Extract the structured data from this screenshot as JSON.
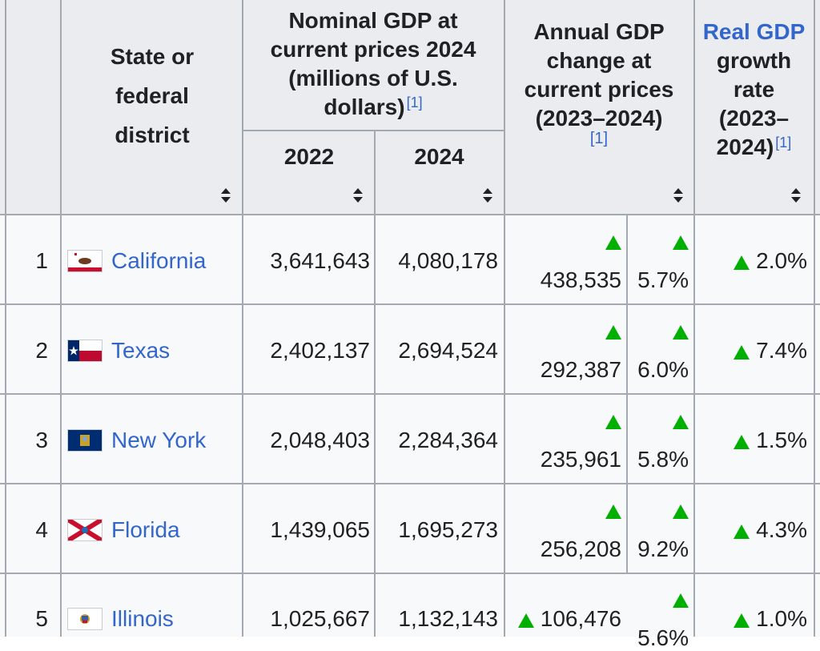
{
  "header": {
    "state_col": [
      "State or",
      "federal",
      "district"
    ],
    "nominal_group": [
      "Nominal GDP at",
      "current prices 2024",
      "(millions of U.S.",
      "dollars)"
    ],
    "year_2022": "2022",
    "year_2024": "2024",
    "annual_change": [
      "Annual GDP",
      "change at",
      "current prices",
      "(2023–2024)"
    ],
    "real_growth_link": "Real GDP",
    "real_growth": [
      "growth",
      "rate",
      "(2023–",
      "2024)"
    ],
    "ref_label": "[1]"
  },
  "colors": {
    "link": "#3366cc",
    "up_arrow": "#00af00",
    "header_bg": "#eaecf0",
    "row_bg": "#f8f9fa",
    "border": "#a2a9b1"
  },
  "icons": {
    "sort": "sort-arrows-icon",
    "increase": "triangle-up-icon"
  },
  "rows": [
    {
      "rank": "1",
      "state": "California",
      "flag": "california-flag-icon",
      "gdp_2022": "3,641,643",
      "gdp_2024": "4,080,178",
      "change": "438,535",
      "change_pct": "5.7%",
      "real_growth": "2.0%"
    },
    {
      "rank": "2",
      "state": "Texas",
      "flag": "texas-flag-icon",
      "gdp_2022": "2,402,137",
      "gdp_2024": "2,694,524",
      "change": "292,387",
      "change_pct": "6.0%",
      "real_growth": "7.4%"
    },
    {
      "rank": "3",
      "state": "New York",
      "flag": "new-york-flag-icon",
      "gdp_2022": "2,048,403",
      "gdp_2024": "2,284,364",
      "change": "235,961",
      "change_pct": "5.8%",
      "real_growth": "1.5%"
    },
    {
      "rank": "4",
      "state": "Florida",
      "flag": "florida-flag-icon",
      "gdp_2022": "1,439,065",
      "gdp_2024": "1,695,273",
      "change": "256,208",
      "change_pct": "9.2%",
      "real_growth": "4.3%"
    },
    {
      "rank": "5",
      "state": "Illinois",
      "flag": "illinois-flag-icon",
      "gdp_2022": "1,025,667",
      "gdp_2024": "1,132,143",
      "change": "106,476",
      "change_pct": "5.6%",
      "real_growth": "1.0%"
    }
  ]
}
